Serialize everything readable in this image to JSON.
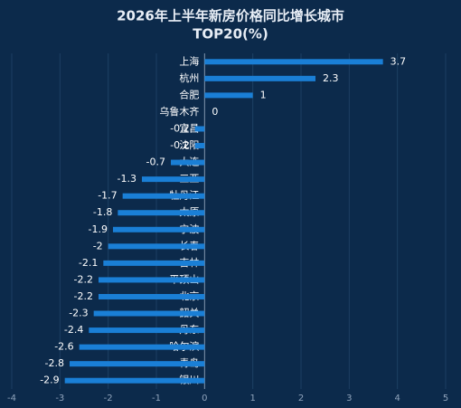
{
  "chart_data": {
    "type": "hbar",
    "title": [
      "2026年上半年新房价格同比增长城市",
      "TOP20(%)"
    ],
    "categories": [
      "上海",
      "杭州",
      "合肥",
      "乌鲁木齐",
      "宜昌",
      "沈阳",
      "大连",
      "三亚",
      "牡丹江",
      "太原",
      "宁波",
      "长春",
      "吉林",
      "平顶山",
      "北京",
      "韶关",
      "丹东",
      "哈尔滨",
      "青岛",
      "银川"
    ],
    "values": [
      3.7,
      2.3,
      1,
      0,
      -0.2,
      -0.2,
      -0.7,
      -1.3,
      -1.7,
      -1.8,
      -1.9,
      -2,
      -2.1,
      -2.2,
      -2.2,
      -2.3,
      -2.4,
      -2.6,
      -2.8,
      -2.9
    ],
    "color": "#1a7fd6",
    "xlim": [
      -4,
      5
    ],
    "xticks": [
      -4,
      -3,
      -2,
      -1,
      0,
      1,
      2,
      3,
      4,
      5
    ],
    "grid": true
  }
}
